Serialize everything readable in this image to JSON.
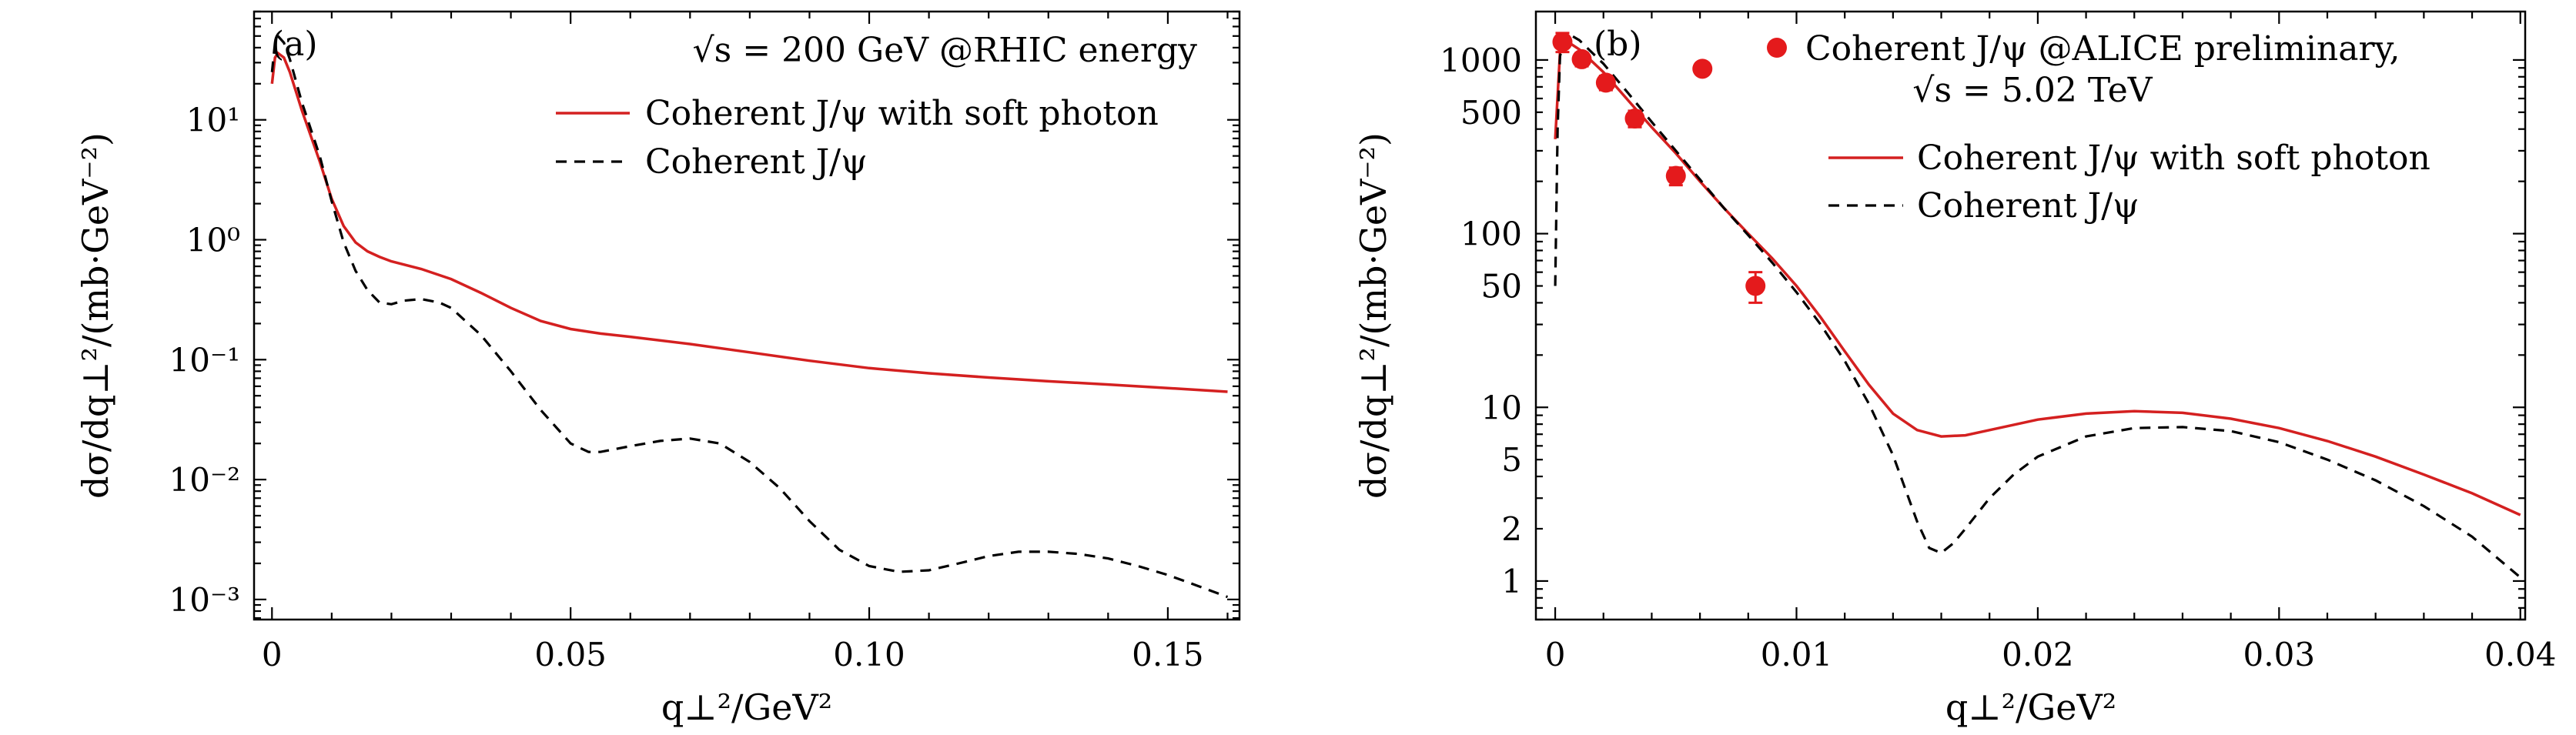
{
  "chart_data": [
    {
      "type": "line",
      "panel_label": "(a)",
      "title": "√s = 200 GeV @RHIC energy",
      "xlabel": "q⊥²/GeV²",
      "ylabel": "dσ/dq⊥²/(mb·GeV⁻²)",
      "xscale": "linear",
      "yscale": "log",
      "xlim": [
        -0.003,
        0.162
      ],
      "ylim": [
        0.00068,
        80
      ],
      "xticks": [
        {
          "value": 0,
          "label": "0"
        },
        {
          "value": 0.05,
          "label": "0.05"
        },
        {
          "value": 0.1,
          "label": "0.10"
        },
        {
          "value": 0.15,
          "label": "0.15"
        }
      ],
      "yticks": [
        {
          "value": 10,
          "label": "10¹"
        },
        {
          "value": 1,
          "label": "10⁰"
        },
        {
          "value": 0.1,
          "label": "10⁻¹"
        },
        {
          "value": 0.01,
          "label": "10⁻²"
        },
        {
          "value": 0.001,
          "label": "10⁻³"
        }
      ],
      "legend_position": "top-right",
      "series": [
        {
          "name": "Coherent J/ψ with soft photon",
          "style": "solid",
          "color": "#d42020",
          "x": [
            0,
            0.0005,
            0.001,
            0.002,
            0.003,
            0.005,
            0.008,
            0.01,
            0.012,
            0.014,
            0.016,
            0.018,
            0.02,
            0.025,
            0.03,
            0.035,
            0.04,
            0.045,
            0.05,
            0.055,
            0.06,
            0.07,
            0.08,
            0.09,
            0.1,
            0.11,
            0.12,
            0.13,
            0.14,
            0.15,
            0.16
          ],
          "y": [
            20,
            33,
            36,
            33,
            25,
            12,
            4.5,
            2.2,
            1.3,
            0.95,
            0.8,
            0.72,
            0.66,
            0.57,
            0.47,
            0.36,
            0.27,
            0.21,
            0.18,
            0.165,
            0.155,
            0.135,
            0.115,
            0.098,
            0.085,
            0.077,
            0.071,
            0.066,
            0.062,
            0.058,
            0.054
          ]
        },
        {
          "name": "Coherent J/ψ",
          "style": "dashed",
          "color": "#000000",
          "x": [
            0,
            0.0005,
            0.001,
            0.002,
            0.003,
            0.005,
            0.008,
            0.01,
            0.012,
            0.014,
            0.016,
            0.018,
            0.02,
            0.022,
            0.025,
            0.028,
            0.03,
            0.035,
            0.04,
            0.045,
            0.05,
            0.053,
            0.055,
            0.06,
            0.065,
            0.07,
            0.075,
            0.08,
            0.085,
            0.09,
            0.095,
            0.1,
            0.105,
            0.11,
            0.115,
            0.12,
            0.125,
            0.13,
            0.135,
            0.14,
            0.145,
            0.15,
            0.155,
            0.16
          ],
          "y": [
            25,
            44,
            50,
            44,
            32,
            14,
            5.0,
            2.1,
            0.95,
            0.55,
            0.38,
            0.3,
            0.29,
            0.31,
            0.32,
            0.3,
            0.27,
            0.16,
            0.08,
            0.038,
            0.02,
            0.017,
            0.017,
            0.019,
            0.021,
            0.022,
            0.02,
            0.014,
            0.0085,
            0.0045,
            0.0026,
            0.0019,
            0.0017,
            0.00175,
            0.002,
            0.0023,
            0.0025,
            0.0025,
            0.0024,
            0.0022,
            0.0019,
            0.0016,
            0.0013,
            0.00105
          ]
        }
      ]
    },
    {
      "type": "line",
      "panel_label": "(b)",
      "xlabel": "q⊥²/GeV²",
      "ylabel": "dσ/dq⊥²/(mb·GeV⁻²)",
      "xscale": "linear",
      "yscale": "log",
      "xlim": [
        -0.0008,
        0.0402
      ],
      "ylim": [
        0.6,
        1900
      ],
      "xticks": [
        {
          "value": 0,
          "label": "0"
        },
        {
          "value": 0.01,
          "label": "0.01"
        },
        {
          "value": 0.02,
          "label": "0.02"
        },
        {
          "value": 0.03,
          "label": "0.03"
        },
        {
          "value": 0.04,
          "label": "0.04"
        }
      ],
      "yticks": [
        {
          "value": 1000,
          "label": "1000"
        },
        {
          "value": 500,
          "label": "500"
        },
        {
          "value": 100,
          "label": "100"
        },
        {
          "value": 50,
          "label": "50"
        },
        {
          "value": 10,
          "label": "10"
        },
        {
          "value": 5,
          "label": "5"
        },
        {
          "value": 2,
          "label": "2"
        },
        {
          "value": 1,
          "label": "1"
        }
      ],
      "legend_position": "top-right",
      "scatter": {
        "name": "Coherent J/ψ @ALICE preliminary,",
        "name_line2": "√s = 5.02 TeV",
        "color": "#e41a1c",
        "points": [
          {
            "x": 0.0003,
            "y": 1270,
            "err": 160
          },
          {
            "x": 0.0011,
            "y": 1010,
            "err": 90
          },
          {
            "x": 0.0021,
            "y": 740,
            "err": 70
          },
          {
            "x": 0.0033,
            "y": 460,
            "err": 50
          },
          {
            "x": 0.005,
            "y": 215,
            "err": 25
          },
          {
            "x": 0.0061,
            "y": 890,
            "err": 40
          },
          {
            "x": 0.0083,
            "y": 50,
            "err": 10
          }
        ]
      },
      "series": [
        {
          "name": "Coherent J/ψ with soft photon",
          "style": "solid",
          "color": "#d42020",
          "x": [
            0,
            0.0002,
            0.0004,
            0.0006,
            0.001,
            0.002,
            0.003,
            0.004,
            0.005,
            0.006,
            0.007,
            0.008,
            0.009,
            0.01,
            0.011,
            0.012,
            0.013,
            0.014,
            0.015,
            0.016,
            0.017,
            0.018,
            0.02,
            0.022,
            0.024,
            0.026,
            0.028,
            0.03,
            0.032,
            0.034,
            0.036,
            0.038,
            0.04
          ],
          "y": [
            350,
            1100,
            1250,
            1250,
            1150,
            850,
            590,
            410,
            290,
            200,
            140,
            100,
            72,
            50,
            33,
            21,
            13.5,
            9.2,
            7.4,
            6.8,
            6.9,
            7.4,
            8.5,
            9.2,
            9.5,
            9.3,
            8.6,
            7.6,
            6.4,
            5.2,
            4.1,
            3.2,
            2.4
          ]
        },
        {
          "name": "Coherent J/ψ",
          "style": "dashed",
          "color": "#000000",
          "x": [
            0,
            0.0001,
            0.0002,
            0.0004,
            0.0006,
            0.001,
            0.002,
            0.003,
            0.004,
            0.005,
            0.006,
            0.007,
            0.008,
            0.009,
            0.01,
            0.011,
            0.012,
            0.013,
            0.014,
            0.015,
            0.0155,
            0.016,
            0.0165,
            0.017,
            0.018,
            0.019,
            0.02,
            0.022,
            0.024,
            0.026,
            0.028,
            0.03,
            0.032,
            0.034,
            0.036,
            0.038,
            0.04
          ],
          "y": [
            50,
            400,
            1050,
            1350,
            1400,
            1300,
            950,
            650,
            440,
            300,
            205,
            140,
            98,
            68,
            46,
            30,
            18.5,
            10.5,
            5.3,
            2.2,
            1.55,
            1.45,
            1.65,
            2.0,
            3.0,
            4.1,
            5.2,
            6.8,
            7.6,
            7.7,
            7.3,
            6.3,
            5.0,
            3.8,
            2.7,
            1.8,
            1.05
          ]
        }
      ]
    }
  ]
}
